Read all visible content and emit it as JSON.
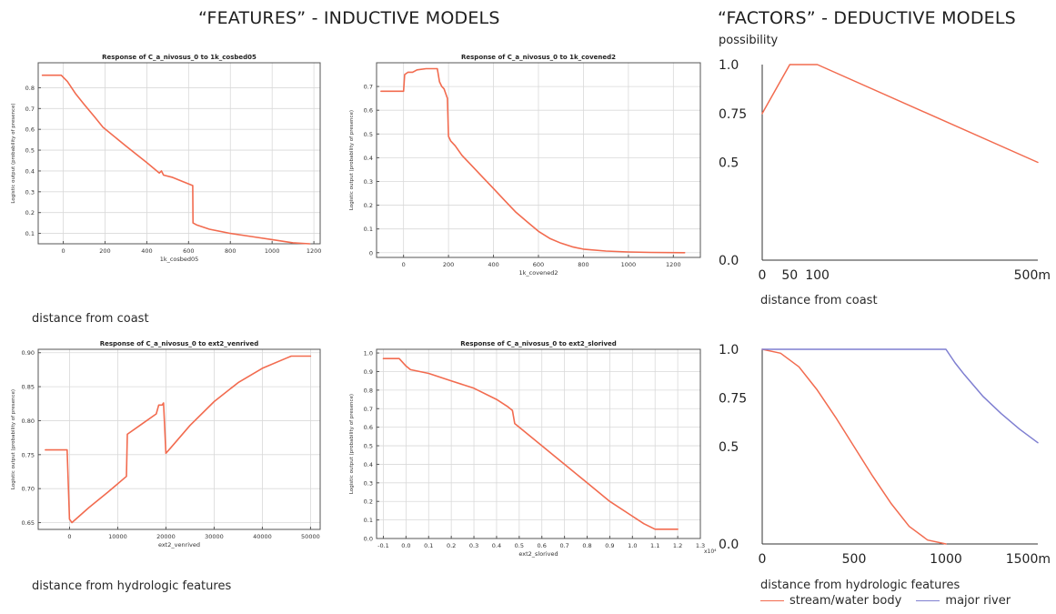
{
  "headings": {
    "features": "“FEATURES” - INDUCTIVE MODELS",
    "factors": "“FACTORS” - DEDUCTIVE MODELS"
  },
  "notes": {
    "coast": "distance from coast",
    "hydro": "distance from hydrologic features",
    "coast_right": "distance from coast",
    "hydro_right": "distance from hydrologic features"
  },
  "legend": {
    "stream": "stream/water body",
    "river": "major river"
  },
  "colors": {
    "curve": "#f26b4f",
    "river": "#7f7fd1",
    "grid": "#d9d9d9",
    "frame": "#555555"
  },
  "chart_data": [
    {
      "id": "c1",
      "type": "line",
      "title": "Response of C_a_nivosus_0 to 1k_cosbed05",
      "xlabel": "1k_cosbed05",
      "ylabel": "Logistic output (probability of presence)",
      "xlim": [
        -120,
        1230
      ],
      "ylim": [
        0.05,
        0.92
      ],
      "xticks": [
        0,
        200,
        400,
        600,
        800,
        1000,
        1200
      ],
      "yticks": [
        0.1,
        0.2,
        0.3,
        0.4,
        0.5,
        0.6,
        0.7,
        0.8
      ],
      "grid": true,
      "series": [
        {
          "x": [
            -100,
            -10,
            20,
            60,
            100,
            150,
            190,
            300,
            400,
            460,
            470,
            480,
            520,
            570,
            620,
            621,
            640,
            700,
            800,
            900,
            1000,
            1100,
            1180
          ],
          "y": [
            0.86,
            0.86,
            0.83,
            0.77,
            0.72,
            0.66,
            0.61,
            0.52,
            0.44,
            0.39,
            0.4,
            0.38,
            0.37,
            0.35,
            0.33,
            0.15,
            0.14,
            0.12,
            0.1,
            0.085,
            0.07,
            0.055,
            0.05
          ]
        }
      ]
    },
    {
      "id": "c2",
      "type": "line",
      "title": "Response of C_a_nivosus_0 to 1k_covened2",
      "xlabel": "1k_covened2",
      "ylabel": "Logistic output (probability of presence)",
      "xlim": [
        -120,
        1320
      ],
      "ylim": [
        -0.02,
        0.8
      ],
      "xticks": [
        0,
        200,
        400,
        600,
        800,
        1000,
        1200
      ],
      "yticks": [
        0.0,
        0.1,
        0.2,
        0.3,
        0.4,
        0.5,
        0.6,
        0.7
      ],
      "grid": true,
      "series": [
        {
          "x": [
            -100,
            0,
            5,
            20,
            40,
            60,
            100,
            150,
            160,
            170,
            180,
            195,
            200,
            210,
            230,
            260,
            300,
            350,
            400,
            450,
            500,
            550,
            600,
            650,
            700,
            750,
            800,
            900,
            1000,
            1100,
            1250
          ],
          "y": [
            0.68,
            0.68,
            0.75,
            0.76,
            0.76,
            0.77,
            0.775,
            0.775,
            0.72,
            0.7,
            0.69,
            0.65,
            0.49,
            0.47,
            0.45,
            0.41,
            0.37,
            0.32,
            0.27,
            0.22,
            0.17,
            0.13,
            0.09,
            0.06,
            0.04,
            0.025,
            0.015,
            0.007,
            0.003,
            0.001,
            0.0
          ]
        }
      ]
    },
    {
      "id": "c3",
      "type": "line",
      "title": "Response of C_a_nivosus_0 to ext2_venrived",
      "xlabel": "ext2_venrived",
      "ylabel": "Logistic output (probability of presence)",
      "xlim": [
        -6500,
        52000
      ],
      "ylim": [
        0.64,
        0.905
      ],
      "xticks": [
        0,
        10000,
        20000,
        30000,
        40000,
        50000
      ],
      "yticks": [
        0.65,
        0.7,
        0.75,
        0.8,
        0.85,
        0.9
      ],
      "ytick_labels": [
        "0.65",
        "0.70",
        "0.75",
        "0.80",
        "0.85",
        "0.90"
      ],
      "grid": true,
      "series": [
        {
          "x": [
            -5000,
            -500,
            0,
            500,
            4000,
            8000,
            11800,
            12000,
            15000,
            18000,
            18500,
            19200,
            19500,
            20000,
            21000,
            25000,
            30000,
            35000,
            40000,
            45000,
            46000,
            50000
          ],
          "y": [
            0.757,
            0.757,
            0.655,
            0.65,
            0.672,
            0.695,
            0.718,
            0.78,
            0.795,
            0.81,
            0.823,
            0.823,
            0.826,
            0.752,
            0.76,
            0.793,
            0.828,
            0.856,
            0.877,
            0.892,
            0.895,
            0.895
          ]
        }
      ]
    },
    {
      "id": "c4",
      "type": "line",
      "title": "Response of C_a_nivosus_0 to ext2_slorived",
      "xlabel": "ext2_slorived",
      "ylabel": "Logistic output (probability of presence)",
      "x_multiplier": "x10⁴",
      "xlim": [
        -0.13,
        1.3
      ],
      "ylim": [
        0.0,
        1.02
      ],
      "xticks": [
        -0.1,
        0.0,
        0.1,
        0.2,
        0.3,
        0.4,
        0.5,
        0.6,
        0.7,
        0.8,
        0.9,
        1.0,
        1.1,
        1.2,
        1.3
      ],
      "xtick_labels": [
        "-0.1",
        "0.0",
        "0.1",
        "0.2",
        "0.3",
        "0.4",
        "0.5",
        "0.6",
        "0.7",
        "0.8",
        "0.9",
        "1.0",
        "1.1",
        "1.2",
        "1.3"
      ],
      "yticks": [
        0.0,
        0.1,
        0.2,
        0.3,
        0.4,
        0.5,
        0.6,
        0.7,
        0.8,
        0.9,
        1.0
      ],
      "ytick_labels": [
        "0.0",
        "0.1",
        "0.2",
        "0.3",
        "0.4",
        "0.5",
        "0.6",
        "0.7",
        "0.8",
        "0.9",
        "1.0"
      ],
      "grid": true,
      "series": [
        {
          "x": [
            -0.1,
            -0.03,
            0.0,
            0.02,
            0.1,
            0.2,
            0.3,
            0.4,
            0.45,
            0.47,
            0.48,
            0.5,
            0.6,
            0.7,
            0.8,
            0.9,
            1.0,
            1.05,
            1.1,
            1.2
          ],
          "y": [
            0.97,
            0.97,
            0.93,
            0.91,
            0.89,
            0.85,
            0.81,
            0.75,
            0.71,
            0.69,
            0.62,
            0.6,
            0.5,
            0.4,
            0.3,
            0.2,
            0.12,
            0.08,
            0.05,
            0.05
          ]
        }
      ]
    },
    {
      "id": "c5",
      "type": "line",
      "ylabel": "possibility",
      "xlabel": "distance from coast",
      "xlim": [
        0,
        500
      ],
      "ylim": [
        0.0,
        1.0
      ],
      "xticks": [
        0,
        50,
        100,
        500
      ],
      "xtick_labels": [
        "0",
        "50",
        "100",
        "500m"
      ],
      "yticks": [
        0.0,
        0.5,
        0.75,
        1.0
      ],
      "ytick_labels": [
        "0.0",
        "0.5",
        "0.75",
        "1.0"
      ],
      "grid": false,
      "series": [
        {
          "x": [
            0,
            50,
            100,
            500
          ],
          "y": [
            0.75,
            1.0,
            1.0,
            0.5
          ]
        }
      ]
    },
    {
      "id": "c6",
      "type": "line",
      "xlabel": "distance from hydrologic features",
      "xlim": [
        0,
        1500
      ],
      "ylim": [
        0.0,
        1.0
      ],
      "xticks": [
        0,
        500,
        1000,
        1500
      ],
      "xtick_labels": [
        "0",
        "500",
        "1000",
        "1500m"
      ],
      "yticks": [
        0.0,
        0.5,
        0.75,
        1.0
      ],
      "ytick_labels": [
        "0.0",
        "0.5",
        "0.75",
        "1.0"
      ],
      "grid": false,
      "legend": "bottom",
      "series": [
        {
          "name": "stream/water body",
          "x": [
            0,
            100,
            200,
            300,
            400,
            500,
            600,
            700,
            800,
            900,
            1000
          ],
          "y": [
            1.0,
            0.98,
            0.91,
            0.79,
            0.65,
            0.5,
            0.35,
            0.21,
            0.09,
            0.02,
            0.0
          ]
        },
        {
          "name": "major river",
          "x": [
            0,
            1000,
            1050,
            1100,
            1200,
            1300,
            1400,
            1500
          ],
          "y": [
            1.0,
            1.0,
            0.93,
            0.87,
            0.76,
            0.67,
            0.59,
            0.52
          ]
        }
      ]
    }
  ]
}
